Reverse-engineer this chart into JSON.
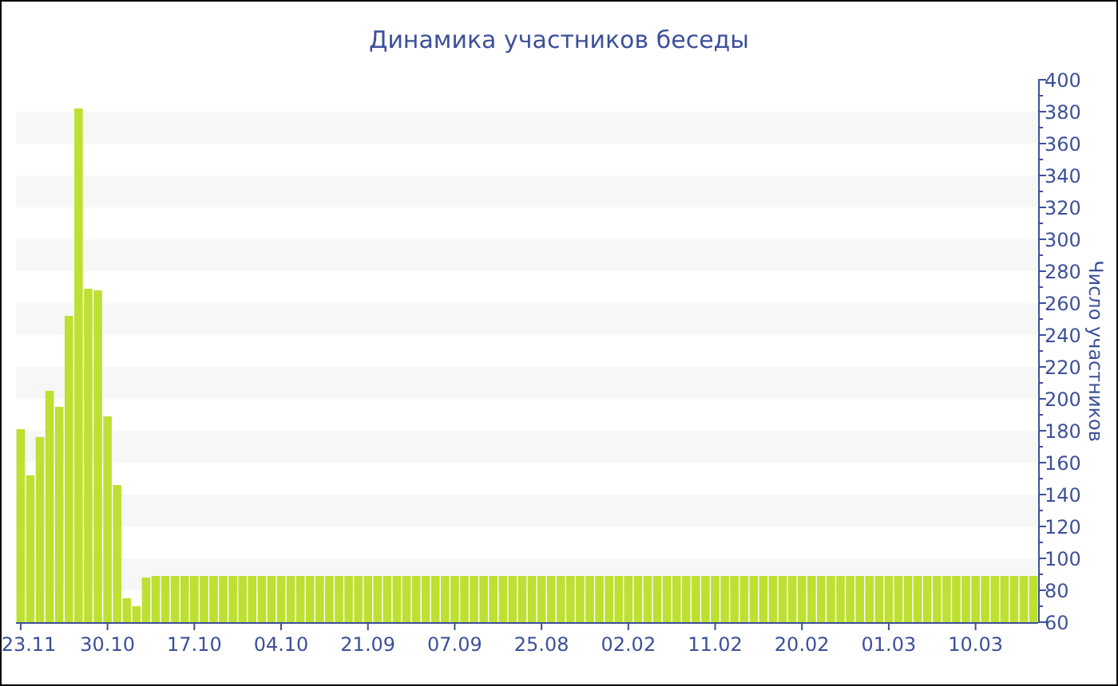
{
  "chart_data": {
    "type": "bar",
    "title": "Динамика участников беседы",
    "ylabel": "Число участников",
    "categories": [
      "23.11",
      null,
      null,
      null,
      null,
      null,
      null,
      null,
      null,
      "30.10",
      null,
      null,
      null,
      null,
      null,
      null,
      null,
      null,
      "17.10",
      null,
      null,
      null,
      null,
      null,
      null,
      null,
      null,
      "04.10",
      null,
      null,
      null,
      null,
      null,
      null,
      null,
      null,
      "21.09",
      null,
      null,
      null,
      null,
      null,
      null,
      null,
      null,
      "07.09",
      null,
      null,
      null,
      null,
      null,
      null,
      null,
      null,
      "25.08",
      null,
      null,
      null,
      null,
      null,
      null,
      null,
      null,
      "02.02",
      null,
      null,
      null,
      null,
      null,
      null,
      null,
      null,
      "11.02",
      null,
      null,
      null,
      null,
      null,
      null,
      null,
      null,
      "20.02",
      null,
      null,
      null,
      null,
      null,
      null,
      null,
      null,
      "01.03",
      null,
      null,
      null,
      null,
      null,
      null,
      null,
      null,
      "10.03",
      null,
      null,
      null,
      null,
      null,
      null
    ],
    "values": [
      181,
      152,
      176,
      205,
      195,
      252,
      382,
      269,
      268,
      189,
      146,
      75,
      70,
      88,
      89,
      89,
      89,
      89,
      89,
      89,
      89,
      89,
      89,
      89,
      89,
      89,
      89,
      89,
      89,
      89,
      89,
      89,
      89,
      89,
      89,
      89,
      89,
      89,
      89,
      89,
      89,
      89,
      89,
      89,
      89,
      89,
      89,
      89,
      89,
      89,
      89,
      89,
      89,
      89,
      89,
      89,
      89,
      89,
      89,
      89,
      89,
      89,
      89,
      89,
      89,
      89,
      89,
      89,
      89,
      89,
      89,
      89,
      89,
      89,
      89,
      89,
      89,
      89,
      89,
      89,
      89,
      89,
      89,
      89,
      89,
      89,
      89,
      89,
      89,
      89,
      89,
      89,
      89,
      89,
      89,
      89,
      89,
      89,
      89,
      89,
      89,
      89,
      89,
      89,
      89,
      89
    ],
    "color": "#bde032",
    "ylim": [
      60,
      400
    ],
    "yticks": [
      60,
      {
        "value": 70,
        "label": null
      },
      80,
      {
        "value": 90,
        "label": null
      },
      100,
      {
        "value": 110,
        "label": null
      },
      120,
      {
        "value": 130,
        "label": null
      },
      140,
      {
        "value": 150,
        "label": null
      },
      160,
      {
        "value": 170,
        "label": null
      },
      180,
      {
        "value": 190,
        "label": null
      },
      200,
      {
        "value": 210,
        "label": null
      },
      220,
      {
        "value": 230,
        "label": null
      },
      240,
      {
        "value": 250,
        "label": null
      },
      260,
      {
        "value": 270,
        "label": null
      },
      280,
      {
        "value": 290,
        "label": null
      },
      300,
      {
        "value": 310,
        "label": null
      },
      320,
      {
        "value": 330,
        "label": null
      },
      340,
      {
        "value": 350,
        "label": null
      },
      360,
      {
        "value": 370,
        "label": null
      },
      380,
      {
        "value": 390,
        "label": null
      },
      400
    ],
    "bands": [
      {
        "axis": "y",
        "from": 80,
        "to": 100,
        "color": "#f7f7f7"
      },
      {
        "axis": "y",
        "from": 120,
        "to": 140,
        "color": "#f7f7f7"
      },
      {
        "axis": "y",
        "from": 160,
        "to": 180,
        "color": "#f7f7f7"
      },
      {
        "axis": "y",
        "from": 200,
        "to": 220,
        "color": "#f7f7f7"
      },
      {
        "axis": "y",
        "from": 240,
        "to": 260,
        "color": "#f7f7f7"
      },
      {
        "axis": "y",
        "from": 280,
        "to": 300,
        "color": "#f7f7f7"
      },
      {
        "axis": "y",
        "from": 320,
        "to": 340,
        "color": "#f7f7f7"
      },
      {
        "axis": "y",
        "from": 360,
        "to": 380,
        "color": "#f7f7f7"
      }
    ]
  }
}
